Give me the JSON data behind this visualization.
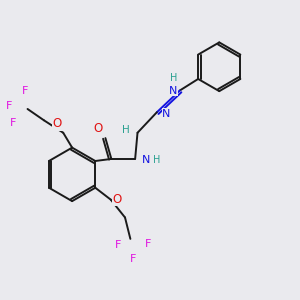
{
  "background_color": "#eaeaee",
  "bond_color": "#1a1a1a",
  "bond_width": 1.4,
  "dbo": 0.008,
  "colors": {
    "C": "#1a1a1a",
    "H": "#2aa090",
    "N": "#1414e0",
    "O": "#e01414",
    "F": "#e014e0"
  }
}
